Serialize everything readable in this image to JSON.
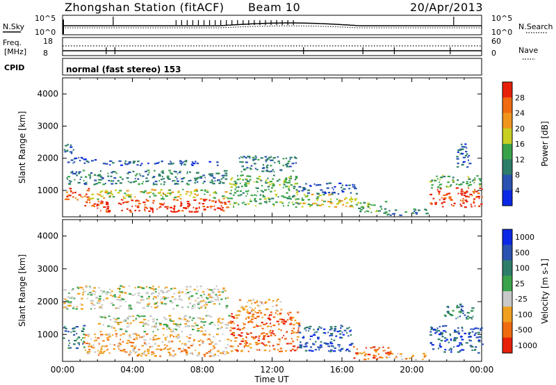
{
  "header": {
    "station": "Zhongshan Station (fitACF)",
    "beam": "Beam 10",
    "date": "20/Apr/2013"
  },
  "status_panels": {
    "nsky_label": "N.Sky",
    "nsky_ticks": [
      "10^5",
      "10^0"
    ],
    "nsearch_label": "N.Search",
    "nsearch_ticks": [
      "10^5",
      "10^0"
    ],
    "freq_label_1": "Freq.",
    "freq_label_2": "[MHz]",
    "freq_ticks": [
      "18",
      "8"
    ],
    "nave_label": "Nave",
    "nave_ticks": [
      "60",
      "0"
    ],
    "cpid_label": "CPID",
    "cpid_text": "normal (fast stereo) 153"
  },
  "chart_data": [
    {
      "type": "heatmap",
      "name": "power",
      "ylabel": "Slant Range [km]",
      "xlabel": "Time UT",
      "yticks": [
        "4000",
        "3000",
        "2000",
        "1000"
      ],
      "ylim": [
        180,
        4500
      ],
      "xlim": [
        "00:00",
        "24:00"
      ],
      "colorbar_label": "Power [dB]",
      "colorbar_ticks": [
        "28",
        "24",
        "20",
        "16",
        "12",
        "8",
        "4"
      ],
      "colors": [
        "#0a28e6",
        "#2a52b0",
        "#2e7d6a",
        "#3aa34a",
        "#c8cf22",
        "#f0961e",
        "#f06a10",
        "#e8200a"
      ],
      "regions": [
        {
          "t": [
            0.0,
            0.6
          ],
          "r": [
            2100,
            2500
          ],
          "level": 1
        },
        {
          "t": [
            0.1,
            2.0
          ],
          "r": [
            1850,
            2050
          ],
          "level": 1
        },
        {
          "t": [
            2.0,
            9.0
          ],
          "r": [
            1800,
            1950
          ],
          "level": 1
        },
        {
          "t": [
            0.2,
            9.5
          ],
          "r": [
            1200,
            1650
          ],
          "level": 2
        },
        {
          "t": [
            0.0,
            1.5
          ],
          "r": [
            700,
            1100
          ],
          "level": 6
        },
        {
          "t": [
            1.0,
            9.5
          ],
          "r": [
            350,
            750
          ],
          "level": 7
        },
        {
          "t": [
            1.5,
            9.5
          ],
          "r": [
            750,
            1050
          ],
          "level": 4
        },
        {
          "t": [
            9.5,
            13.5
          ],
          "r": [
            500,
            1500
          ],
          "level": 3
        },
        {
          "t": [
            10.0,
            13.5
          ],
          "r": [
            1600,
            2100
          ],
          "level": 2
        },
        {
          "t": [
            13.5,
            16.8
          ],
          "r": [
            900,
            1250
          ],
          "level": 1
        },
        {
          "t": [
            13.5,
            16.8
          ],
          "r": [
            500,
            900
          ],
          "level": 4
        },
        {
          "t": [
            16.8,
            18.5
          ],
          "r": [
            300,
            700
          ],
          "level": 3
        },
        {
          "t": [
            18.5,
            21.0
          ],
          "r": [
            250,
            450
          ],
          "level": 2
        },
        {
          "t": [
            21.0,
            24.0
          ],
          "r": [
            500,
            1100
          ],
          "level": 7
        },
        {
          "t": [
            21.0,
            24.0
          ],
          "r": [
            1100,
            1500
          ],
          "level": 3
        },
        {
          "t": [
            22.5,
            23.3
          ],
          "r": [
            1700,
            2500
          ],
          "level": 1
        }
      ]
    },
    {
      "type": "heatmap",
      "name": "velocity",
      "ylabel": "Slant Range [km]",
      "xlabel": "Time UT",
      "yticks": [
        "4000",
        "3000",
        "2000",
        "1000"
      ],
      "ylim": [
        180,
        4500
      ],
      "xlim": [
        "00:00",
        "24:00"
      ],
      "colorbar_label": "Velocity [m s-1]",
      "colorbar_ticks": [
        "1000",
        "500",
        "100",
        "25",
        "-25",
        "-100",
        "-500",
        "-1000"
      ],
      "colors": [
        "#e8200a",
        "#f06a10",
        "#f0a020",
        "#c8c8c8",
        "#3aa34a",
        "#2e7d6a",
        "#2a52b0",
        "#0a28e6"
      ],
      "regions": [
        {
          "t": [
            0.0,
            9.5
          ],
          "r": [
            1800,
            2500
          ],
          "level": 3
        },
        {
          "t": [
            0.0,
            1.2
          ],
          "r": [
            600,
            1300
          ],
          "level": 5
        },
        {
          "t": [
            1.2,
            9.5
          ],
          "r": [
            350,
            1050
          ],
          "level": 2
        },
        {
          "t": [
            2.0,
            9.5
          ],
          "r": [
            1100,
            1600
          ],
          "level": 3
        },
        {
          "t": [
            9.5,
            13.5
          ],
          "r": [
            500,
            1700
          ],
          "level": 1
        },
        {
          "t": [
            10.0,
            12.5
          ],
          "r": [
            1700,
            2100
          ],
          "level": 2
        },
        {
          "t": [
            13.5,
            16.5
          ],
          "r": [
            500,
            1300
          ],
          "level": 6
        },
        {
          "t": [
            16.5,
            18.8
          ],
          "r": [
            250,
            650
          ],
          "level": 1
        },
        {
          "t": [
            18.5,
            21.0
          ],
          "r": [
            250,
            450
          ],
          "level": 2
        },
        {
          "t": [
            21.0,
            24.0
          ],
          "r": [
            450,
            1300
          ],
          "level": 6
        },
        {
          "t": [
            21.8,
            23.6
          ],
          "r": [
            1500,
            2000
          ],
          "level": 5
        }
      ]
    }
  ],
  "xticks": [
    "00:00",
    "04:00",
    "08:00",
    "12:00",
    "16:00",
    "20:00",
    "00:00"
  ]
}
